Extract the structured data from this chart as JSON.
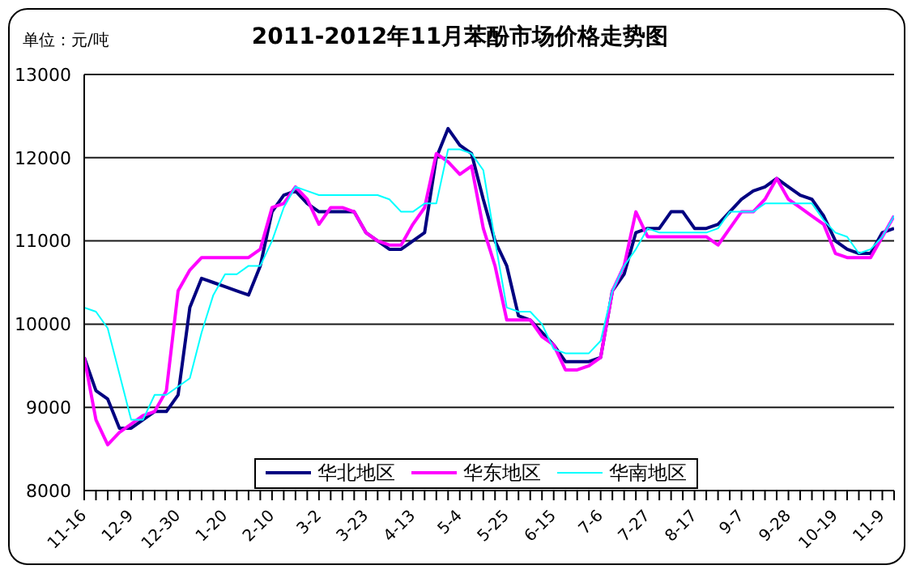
{
  "chart_data": {
    "type": "line",
    "title": "2011-2012年11月苯酚市场价格走势图",
    "annotations": [
      "单位：元/吨"
    ],
    "categories": [
      "11-16",
      null,
      null,
      null,
      "12-9",
      null,
      null,
      null,
      "12-30",
      null,
      null,
      null,
      "1-20",
      null,
      null,
      null,
      "2-10",
      null,
      null,
      null,
      "3-2",
      null,
      null,
      null,
      "3-23",
      null,
      null,
      null,
      "4-13",
      null,
      null,
      null,
      "5-4",
      null,
      null,
      null,
      "5-25",
      null,
      null,
      null,
      "6-15",
      null,
      null,
      null,
      "7-6",
      null,
      null,
      null,
      "7-27",
      null,
      null,
      null,
      "8-17",
      null,
      null,
      null,
      "9-7",
      null,
      null,
      null,
      "9-28",
      null,
      null,
      null,
      "10-19",
      null,
      null,
      null,
      "11-9",
      null
    ],
    "series": [
      {
        "name": "华北地区",
        "color": "#000080",
        "values": [
          9600,
          9200,
          9100,
          8750,
          8750,
          8850,
          8950,
          8950,
          9150,
          10200,
          10550,
          10500,
          10450,
          10400,
          10350,
          10700,
          11350,
          11550,
          11600,
          11450,
          11350,
          11350,
          11350,
          11350,
          11100,
          11000,
          10900,
          10900,
          11000,
          11100,
          12000,
          12350,
          12150,
          12050,
          11500,
          11000,
          10700,
          10100,
          10050,
          9900,
          9750,
          9550,
          9550,
          9550,
          9600,
          10400,
          10600,
          11100,
          11150,
          11150,
          11350,
          11350,
          11150,
          11150,
          11200,
          11350,
          11500,
          11600,
          11650,
          11750,
          11650,
          11550,
          11500,
          11300,
          11000,
          10900,
          10850,
          10850,
          11100,
          11150
        ]
      },
      {
        "name": "华东地区",
        "color": "#ff00ff",
        "values": [
          9600,
          8850,
          8550,
          8700,
          8800,
          8900,
          8950,
          9200,
          10400,
          10650,
          10800,
          10800,
          10800,
          10800,
          10800,
          10900,
          11400,
          11450,
          11650,
          11500,
          11200,
          11400,
          11400,
          11350,
          11100,
          11000,
          10950,
          10950,
          11200,
          11400,
          12050,
          11950,
          11800,
          11900,
          11150,
          10700,
          10050,
          10050,
          10050,
          9850,
          9750,
          9450,
          9450,
          9500,
          9600,
          10400,
          10700,
          11350,
          11050,
          11050,
          11050,
          11050,
          11050,
          11050,
          10950,
          11150,
          11350,
          11350,
          11500,
          11750,
          11500,
          11400,
          11300,
          11200,
          10850,
          10800,
          10800,
          10800,
          11050,
          11300
        ]
      },
      {
        "name": "华南地区",
        "color": "#00ffff",
        "values": [
          10200,
          10150,
          9950,
          9400,
          8850,
          8850,
          9150,
          9150,
          9250,
          9350,
          9900,
          10350,
          10600,
          10600,
          10700,
          10700,
          11000,
          11400,
          11650,
          11600,
          11550,
          11550,
          11550,
          11550,
          11550,
          11550,
          11500,
          11350,
          11350,
          11450,
          11450,
          12100,
          12100,
          12050,
          11850,
          11000,
          10200,
          10150,
          10150,
          10000,
          9700,
          9650,
          9650,
          9650,
          9800,
          10400,
          10700,
          10900,
          11150,
          11100,
          11100,
          11100,
          11100,
          11100,
          11150,
          11350,
          11350,
          11350,
          11450,
          11450,
          11450,
          11450,
          11450,
          11250,
          11100,
          11050,
          10850,
          10900,
          11050,
          11300
        ]
      }
    ],
    "ylim": [
      8000,
      13000
    ],
    "yticks": [
      8000,
      9000,
      10000,
      11000,
      12000,
      13000
    ],
    "grid": "y",
    "legend": "bottom",
    "marker": "none"
  }
}
